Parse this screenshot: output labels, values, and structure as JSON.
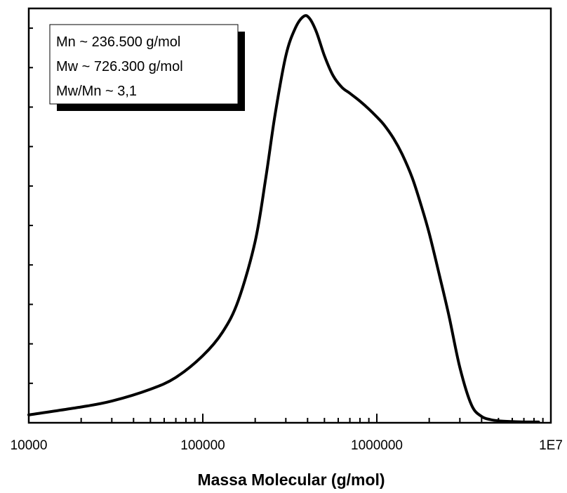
{
  "chart_data": {
    "type": "line",
    "title": "",
    "xlabel": "Massa Molecular (g/mol)",
    "ylabel": "",
    "x_scale": "log",
    "xlim": [
      10000,
      10000000
    ],
    "ylim": [
      0,
      1.05
    ],
    "grid": false,
    "x_ticks": [
      {
        "value": 10000,
        "label": "10000"
      },
      {
        "value": 100000,
        "label": "100000"
      },
      {
        "value": 1000000,
        "label": "1000000"
      },
      {
        "value": 10000000,
        "label": "1E7"
      }
    ],
    "y_ticks": [
      0.0,
      0.1,
      0.2,
      0.3,
      0.4,
      0.5,
      0.6,
      0.7,
      0.8,
      0.9,
      1.0
    ],
    "annotation_lines": [
      "Mn ~ 236.500 g/mol",
      "Mw ~ 726.300 g/mol",
      "Mw/Mn ~ 3,1"
    ],
    "series": [
      {
        "x": [
          10000,
          20000,
          30000,
          50000,
          70000,
          100000,
          130000,
          160000,
          200000,
          230000,
          260000,
          300000,
          340000,
          380000,
          410000,
          450000,
          500000,
          560000,
          630000,
          700000,
          800000,
          900000,
          1000000,
          1100000,
          1250000,
          1400000,
          1600000,
          1800000,
          2000000,
          2300000,
          2600000,
          3000000,
          3500000,
          4000000,
          4500000,
          5000000,
          6000000,
          7000000,
          8500000
        ],
        "y": [
          0.02,
          0.04,
          0.055,
          0.085,
          0.115,
          0.17,
          0.23,
          0.31,
          0.46,
          0.62,
          0.78,
          0.93,
          1.0,
          1.03,
          1.025,
          0.99,
          0.93,
          0.88,
          0.85,
          0.835,
          0.815,
          0.795,
          0.775,
          0.755,
          0.72,
          0.68,
          0.62,
          0.55,
          0.48,
          0.37,
          0.27,
          0.14,
          0.045,
          0.016,
          0.008,
          0.005,
          0.003,
          0.002,
          0.002
        ]
      }
    ]
  }
}
